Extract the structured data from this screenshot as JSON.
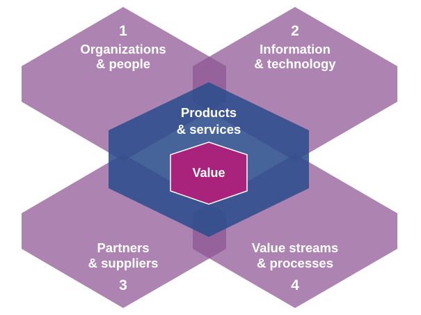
{
  "colors": {
    "dimension_fill": "#8e5593",
    "overlap_fill": "#6a3171",
    "products_fill": "#2c4d8c",
    "value_fill": "#a9237d",
    "text": "#ffffff"
  },
  "dimensions": [
    {
      "number": "1",
      "line1": "Organizations",
      "line2": "& people"
    },
    {
      "number": "2",
      "line1": "Information",
      "line2": "& technology"
    },
    {
      "number": "3",
      "line1": "Partners",
      "line2": "& suppliers"
    },
    {
      "number": "4",
      "line1": "Value streams",
      "line2": "& processes"
    }
  ],
  "center": {
    "line1": "Products",
    "line2": "& services"
  },
  "core": {
    "label": "Value"
  }
}
